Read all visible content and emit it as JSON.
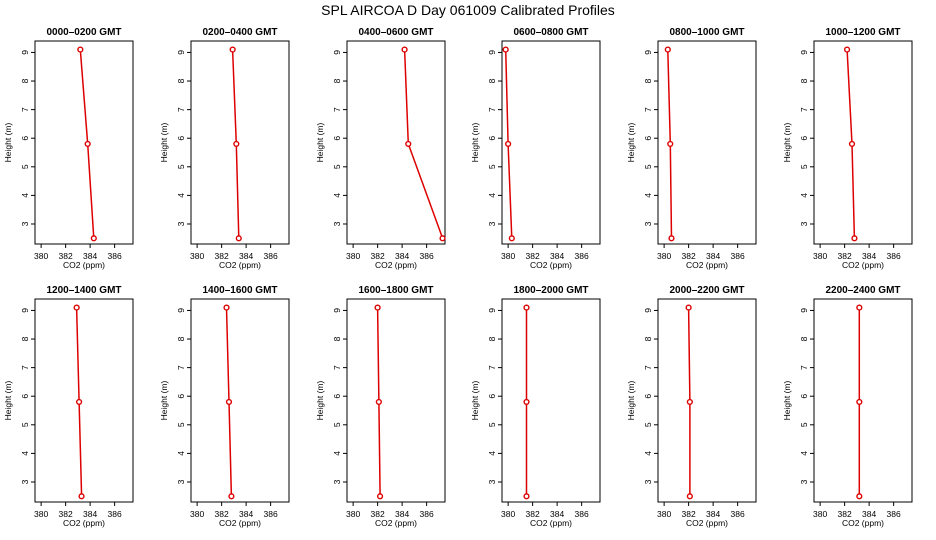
{
  "title": "SPL AIRCOA D  Day 061009  Calibrated Profiles",
  "colors": {
    "profile": "#dd0000",
    "axis": "#000000",
    "background": "#ffffff"
  },
  "chart_data": [
    {
      "type": "line",
      "title": "0000–0200 GMT",
      "xlabel": "CO2 (ppm)",
      "ylabel": "Height (m)",
      "xlim": [
        379.5,
        387.5
      ],
      "ylim": [
        2.3,
        9.4
      ],
      "xticks": [
        380,
        382,
        384,
        386
      ],
      "yticks": [
        3,
        4,
        5,
        6,
        7,
        8,
        9
      ],
      "grid": false,
      "series": [
        {
          "x": [
            384.3,
            383.8,
            383.2
          ],
          "y": [
            2.5,
            5.8,
            9.1
          ]
        }
      ]
    },
    {
      "type": "line",
      "title": "0200–0400 GMT",
      "xlabel": "CO2 (ppm)",
      "ylabel": "Height (m)",
      "xlim": [
        379.5,
        387.5
      ],
      "ylim": [
        2.3,
        9.4
      ],
      "xticks": [
        380,
        382,
        384,
        386
      ],
      "yticks": [
        3,
        4,
        5,
        6,
        7,
        8,
        9
      ],
      "grid": false,
      "series": [
        {
          "x": [
            383.4,
            383.2,
            382.9
          ],
          "y": [
            2.5,
            5.8,
            9.1
          ]
        }
      ]
    },
    {
      "type": "line",
      "title": "0400–0600 GMT",
      "xlabel": "CO2 (ppm)",
      "ylabel": "Height (m)",
      "xlim": [
        379.5,
        387.5
      ],
      "ylim": [
        2.3,
        9.4
      ],
      "xticks": [
        380,
        382,
        384,
        386
      ],
      "yticks": [
        3,
        4,
        5,
        6,
        7,
        8,
        9
      ],
      "grid": false,
      "series": [
        {
          "x": [
            387.3,
            384.5,
            384.2
          ],
          "y": [
            2.5,
            5.8,
            9.1
          ]
        }
      ]
    },
    {
      "type": "line",
      "title": "0600–0800 GMT",
      "xlabel": "CO2 (ppm)",
      "ylabel": "Height (m)",
      "xlim": [
        379.5,
        387.5
      ],
      "ylim": [
        2.3,
        9.4
      ],
      "xticks": [
        380,
        382,
        384,
        386
      ],
      "yticks": [
        3,
        4,
        5,
        6,
        7,
        8,
        9
      ],
      "grid": false,
      "series": [
        {
          "x": [
            380.3,
            380.0,
            379.8
          ],
          "y": [
            2.5,
            5.8,
            9.1
          ]
        }
      ]
    },
    {
      "type": "line",
      "title": "0800–1000 GMT",
      "xlabel": "CO2 (ppm)",
      "ylabel": "Height (m)",
      "xlim": [
        379.5,
        387.5
      ],
      "ylim": [
        2.3,
        9.4
      ],
      "xticks": [
        380,
        382,
        384,
        386
      ],
      "yticks": [
        3,
        4,
        5,
        6,
        7,
        8,
        9
      ],
      "grid": false,
      "series": [
        {
          "x": [
            380.6,
            380.5,
            380.3
          ],
          "y": [
            2.5,
            5.8,
            9.1
          ]
        }
      ]
    },
    {
      "type": "line",
      "title": "1000–1200 GMT",
      "xlabel": "CO2 (ppm)",
      "ylabel": "Height (m)",
      "xlim": [
        379.5,
        387.5
      ],
      "ylim": [
        2.3,
        9.4
      ],
      "xticks": [
        380,
        382,
        384,
        386
      ],
      "yticks": [
        3,
        4,
        5,
        6,
        7,
        8,
        9
      ],
      "grid": false,
      "series": [
        {
          "x": [
            382.8,
            382.6,
            382.2
          ],
          "y": [
            2.5,
            5.8,
            9.1
          ]
        }
      ]
    },
    {
      "type": "line",
      "title": "1200–1400 GMT",
      "xlabel": "CO2 (ppm)",
      "ylabel": "Height (m)",
      "xlim": [
        379.5,
        387.5
      ],
      "ylim": [
        2.3,
        9.4
      ],
      "xticks": [
        380,
        382,
        384,
        386
      ],
      "yticks": [
        3,
        4,
        5,
        6,
        7,
        8,
        9
      ],
      "grid": false,
      "series": [
        {
          "x": [
            383.3,
            383.1,
            382.9
          ],
          "y": [
            2.5,
            5.8,
            9.1
          ]
        }
      ]
    },
    {
      "type": "line",
      "title": "1400–1600 GMT",
      "xlabel": "CO2 (ppm)",
      "ylabel": "Height (m)",
      "xlim": [
        379.5,
        387.5
      ],
      "ylim": [
        2.3,
        9.4
      ],
      "xticks": [
        380,
        382,
        384,
        386
      ],
      "yticks": [
        3,
        4,
        5,
        6,
        7,
        8,
        9
      ],
      "grid": false,
      "series": [
        {
          "x": [
            382.8,
            382.6,
            382.4
          ],
          "y": [
            2.5,
            5.8,
            9.1
          ]
        }
      ]
    },
    {
      "type": "line",
      "title": "1600–1800 GMT",
      "xlabel": "CO2 (ppm)",
      "ylabel": "Height (m)",
      "xlim": [
        379.5,
        387.5
      ],
      "ylim": [
        2.3,
        9.4
      ],
      "xticks": [
        380,
        382,
        384,
        386
      ],
      "yticks": [
        3,
        4,
        5,
        6,
        7,
        8,
        9
      ],
      "grid": false,
      "series": [
        {
          "x": [
            382.2,
            382.1,
            382.0
          ],
          "y": [
            2.5,
            5.8,
            9.1
          ]
        }
      ]
    },
    {
      "type": "line",
      "title": "1800–2000 GMT",
      "xlabel": "CO2 (ppm)",
      "ylabel": "Height (m)",
      "xlim": [
        379.5,
        387.5
      ],
      "ylim": [
        2.3,
        9.4
      ],
      "xticks": [
        380,
        382,
        384,
        386
      ],
      "yticks": [
        3,
        4,
        5,
        6,
        7,
        8,
        9
      ],
      "grid": false,
      "series": [
        {
          "x": [
            381.5,
            381.5,
            381.5
          ],
          "y": [
            2.5,
            5.8,
            9.1
          ]
        }
      ]
    },
    {
      "type": "line",
      "title": "2000–2200 GMT",
      "xlabel": "CO2 (ppm)",
      "ylabel": "Height (m)",
      "xlim": [
        379.5,
        387.5
      ],
      "ylim": [
        2.3,
        9.4
      ],
      "xticks": [
        380,
        382,
        384,
        386
      ],
      "yticks": [
        3,
        4,
        5,
        6,
        7,
        8,
        9
      ],
      "grid": false,
      "series": [
        {
          "x": [
            382.1,
            382.1,
            382.0
          ],
          "y": [
            2.5,
            5.8,
            9.1
          ]
        }
      ]
    },
    {
      "type": "line",
      "title": "2200–2400 GMT",
      "xlabel": "CO2 (ppm)",
      "ylabel": "Height (m)",
      "xlim": [
        379.5,
        387.5
      ],
      "ylim": [
        2.3,
        9.4
      ],
      "xticks": [
        380,
        382,
        384,
        386
      ],
      "yticks": [
        3,
        4,
        5,
        6,
        7,
        8,
        9
      ],
      "grid": false,
      "series": [
        {
          "x": [
            383.2,
            383.2,
            383.2
          ],
          "y": [
            2.5,
            5.8,
            9.1
          ]
        }
      ]
    }
  ]
}
